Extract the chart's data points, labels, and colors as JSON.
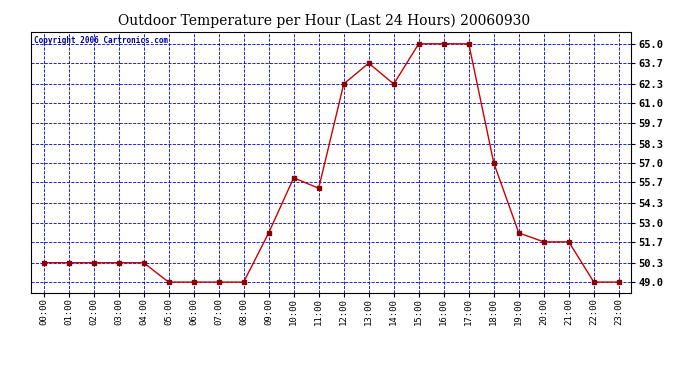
{
  "title": "Outdoor Temperature per Hour (Last 24 Hours) 20060930",
  "copyright_text": "Copyright 2006 Cartronics.com",
  "hours": [
    "00:00",
    "01:00",
    "02:00",
    "03:00",
    "04:00",
    "05:00",
    "06:00",
    "07:00",
    "08:00",
    "09:00",
    "10:00",
    "11:00",
    "12:00",
    "13:00",
    "14:00",
    "15:00",
    "16:00",
    "17:00",
    "18:00",
    "19:00",
    "20:00",
    "21:00",
    "22:00",
    "23:00"
  ],
  "temps": [
    50.3,
    50.3,
    50.3,
    50.3,
    50.3,
    49.0,
    49.0,
    49.0,
    49.0,
    52.3,
    56.0,
    55.3,
    62.3,
    63.7,
    62.3,
    65.0,
    65.0,
    65.0,
    57.0,
    52.3,
    51.7,
    51.7,
    49.0,
    49.0
  ],
  "line_color": "#cc0000",
  "marker_color": "#880000",
  "background_color": "#ffffff",
  "plot_bg_color": "#ffffff",
  "grid_color": "#0000cc",
  "title_color": "#000000",
  "copyright_color": "#000099",
  "ytick_labels": [
    "49.0",
    "50.3",
    "51.7",
    "53.0",
    "54.3",
    "55.7",
    "57.0",
    "58.3",
    "59.7",
    "61.0",
    "62.3",
    "63.7",
    "65.0"
  ],
  "ytick_values": [
    49.0,
    50.3,
    51.7,
    53.0,
    54.3,
    55.7,
    57.0,
    58.3,
    59.7,
    61.0,
    62.3,
    63.7,
    65.0
  ],
  "ymin": 48.3,
  "ymax": 65.8,
  "border_color": "#000000"
}
